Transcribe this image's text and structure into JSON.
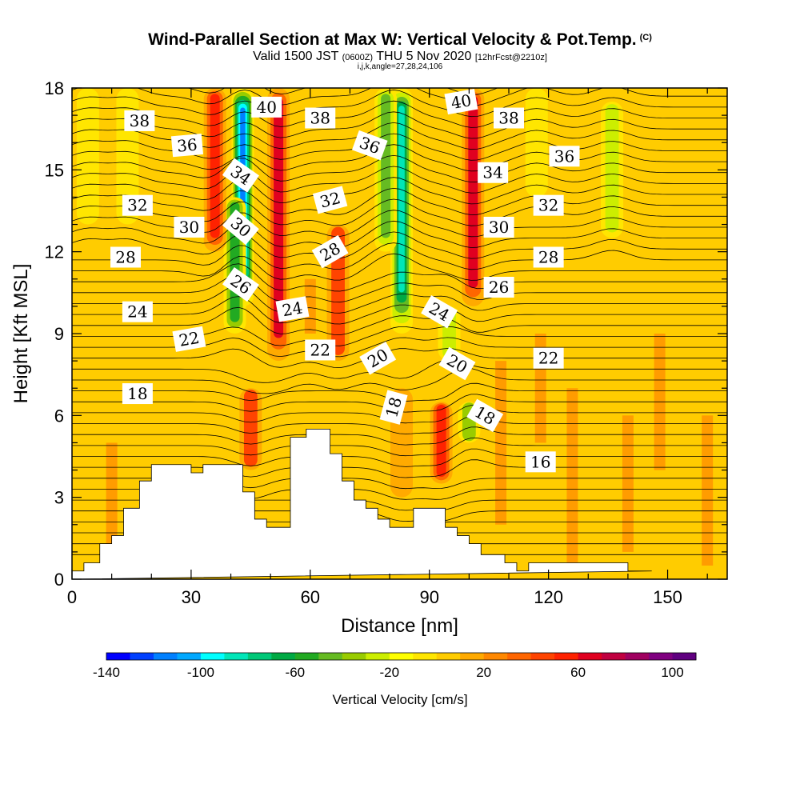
{
  "header": {
    "title": "Wind-Parallel Section at Max W: Vertical Velocity & Pot.Temp.",
    "copyright_tag": "(C)",
    "subtitle_pre": "Valid 1500 JST",
    "subtitle_utc": "(0600Z)",
    "subtitle_post": "THU 5 Nov 2020",
    "subtitle_fcst": "[12hrFcst@2210z]",
    "params": "i,j,k,angle=27,28,24,106"
  },
  "chart_data": {
    "type": "heatmap",
    "xlabel": "Distance [nm]",
    "ylabel": "Height [Kft MSL]",
    "xlim": [
      0,
      165
    ],
    "ylim": [
      0,
      18
    ],
    "x_ticks": [
      0,
      30,
      60,
      90,
      120,
      150
    ],
    "y_ticks": [
      0,
      3,
      6,
      9,
      12,
      15,
      18
    ],
    "colorbar": {
      "title": "Vertical Velocity [cm/s]",
      "range": [
        -140,
        110
      ],
      "step": 10,
      "tick_values": [
        -140,
        -100,
        -60,
        -20,
        20,
        60,
        100
      ],
      "tick_labels": [
        "-140",
        "-100",
        "-60",
        "-20",
        "20",
        "60",
        "100"
      ],
      "colors": [
        "#0000ff",
        "#0040ff",
        "#0080ff",
        "#00a8ff",
        "#00ffff",
        "#00e6b8",
        "#00c878",
        "#00aa44",
        "#22aa22",
        "#66bb22",
        "#99cc00",
        "#ccee00",
        "#ffff00",
        "#ffe600",
        "#ffcc00",
        "#ffaa00",
        "#ff8800",
        "#ff6600",
        "#ff4400",
        "#ff2200",
        "#e00020",
        "#c00040",
        "#a00060",
        "#800080",
        "#600080"
      ]
    },
    "velocity_features": [
      {
        "x": 43,
        "y0": 10,
        "y1": 18,
        "w": -120
      },
      {
        "x": 41,
        "y0": 9,
        "y1": 14,
        "w": -60
      },
      {
        "x": 36,
        "y0": 12,
        "y1": 18,
        "w": 50
      },
      {
        "x": 52,
        "y0": 8,
        "y1": 18,
        "w": 60
      },
      {
        "x": 83,
        "y0": 9,
        "y1": 18,
        "w": -90
      },
      {
        "x": 79,
        "y0": 12,
        "y1": 18,
        "w": -50
      },
      {
        "x": 67,
        "y0": 8,
        "y1": 13,
        "w": 40
      },
      {
        "x": 101,
        "y0": 10,
        "y1": 18,
        "w": 60
      },
      {
        "x": 93,
        "y0": 3.5,
        "y1": 6.5,
        "w": 50
      },
      {
        "x": 83,
        "y0": 3,
        "y1": 7,
        "w": 20
      },
      {
        "x": 45,
        "y0": 4,
        "y1": 7,
        "w": 40
      },
      {
        "x": 4,
        "y0": 13,
        "y1": 18,
        "w": -20
      },
      {
        "x": 14,
        "y0": 13,
        "y1": 18,
        "w": -15
      },
      {
        "x": 117,
        "y0": 14,
        "y1": 18,
        "w": -20
      },
      {
        "x": 136,
        "y0": 12.5,
        "y1": 17.5,
        "w": -30
      },
      {
        "x": 100,
        "y0": 5,
        "y1": 6.5,
        "w": -40
      },
      {
        "x": 95,
        "y0": 8,
        "y1": 10,
        "w": -30
      }
    ],
    "terrain": {
      "x": [
        0,
        3,
        3,
        7,
        7,
        10,
        10,
        13,
        13,
        17,
        17,
        20,
        20,
        30,
        30,
        33,
        33,
        43,
        43,
        46,
        46,
        49,
        49,
        55,
        55,
        59,
        59,
        65,
        65,
        68,
        68,
        71,
        71,
        74,
        74,
        77,
        77,
        80,
        80,
        86,
        86,
        94,
        94,
        97,
        97,
        100,
        100,
        103,
        103,
        109,
        109,
        112,
        112,
        115,
        115,
        140,
        140,
        146,
        146,
        165
      ],
      "y": [
        0.3,
        0.3,
        0.6,
        0.6,
        1.3,
        1.3,
        1.6,
        1.6,
        2.6,
        2.6,
        3.6,
        3.6,
        4.2,
        4.2,
        3.9,
        3.9,
        4.2,
        4.2,
        3.2,
        3.2,
        2.2,
        2.2,
        1.9,
        1.9,
        5.2,
        5.2,
        5.5,
        5.5,
        4.6,
        4.6,
        3.6,
        3.6,
        2.9,
        2.9,
        2.6,
        2.6,
        2.2,
        2.2,
        1.9,
        1.9,
        2.6,
        2.6,
        1.9,
        1.9,
        1.6,
        1.6,
        1.3,
        1.3,
        0.9,
        0.9,
        0.6,
        0.6,
        0.3,
        0.3,
        0.6,
        0.6,
        0.3,
        0.3,
        0.3
      ]
    },
    "theta_labels": [
      {
        "text": "38",
        "x": 17,
        "y": 16.8,
        "angle": 0
      },
      {
        "text": "36",
        "x": 29,
        "y": 15.9,
        "angle": -5
      },
      {
        "text": "34",
        "x": 42.5,
        "y": 14.8,
        "angle": 35
      },
      {
        "text": "40",
        "x": 49,
        "y": 17.3,
        "angle": 0
      },
      {
        "text": "38",
        "x": 62.5,
        "y": 16.9,
        "angle": 0
      },
      {
        "text": "36",
        "x": 75,
        "y": 15.9,
        "angle": 20
      },
      {
        "text": "40",
        "x": 98,
        "y": 17.5,
        "angle": -10
      },
      {
        "text": "38",
        "x": 110,
        "y": 16.9,
        "angle": 0
      },
      {
        "text": "36",
        "x": 124,
        "y": 15.5,
        "angle": 0
      },
      {
        "text": "34",
        "x": 106,
        "y": 14.9,
        "angle": 0
      },
      {
        "text": "32",
        "x": 16.5,
        "y": 13.7,
        "angle": 0
      },
      {
        "text": "32",
        "x": 65,
        "y": 13.9,
        "angle": -15
      },
      {
        "text": "32",
        "x": 120,
        "y": 13.7,
        "angle": 0
      },
      {
        "text": "30",
        "x": 29.5,
        "y": 12.9,
        "angle": 0
      },
      {
        "text": "30",
        "x": 42.5,
        "y": 12.9,
        "angle": 40
      },
      {
        "text": "30",
        "x": 107.5,
        "y": 12.9,
        "angle": 0
      },
      {
        "text": "28",
        "x": 13.5,
        "y": 11.8,
        "angle": 0
      },
      {
        "text": "28",
        "x": 65,
        "y": 12.0,
        "angle": -30
      },
      {
        "text": "28",
        "x": 120,
        "y": 11.8,
        "angle": 0
      },
      {
        "text": "26",
        "x": 42.5,
        "y": 10.8,
        "angle": 35
      },
      {
        "text": "26",
        "x": 107.5,
        "y": 10.7,
        "angle": 0
      },
      {
        "text": "24",
        "x": 16.5,
        "y": 9.8,
        "angle": 0
      },
      {
        "text": "24",
        "x": 55.5,
        "y": 9.9,
        "angle": -10
      },
      {
        "text": "24",
        "x": 92.5,
        "y": 9.8,
        "angle": 30
      },
      {
        "text": "22",
        "x": 29.5,
        "y": 8.8,
        "angle": -10
      },
      {
        "text": "22",
        "x": 62.5,
        "y": 8.4,
        "angle": 0
      },
      {
        "text": "22",
        "x": 120,
        "y": 8.1,
        "angle": 0
      },
      {
        "text": "20",
        "x": 77,
        "y": 8.1,
        "angle": -30
      },
      {
        "text": "20",
        "x": 97,
        "y": 7.9,
        "angle": 30
      },
      {
        "text": "18",
        "x": 16.5,
        "y": 6.8,
        "angle": 0
      },
      {
        "text": "18",
        "x": 81,
        "y": 6.3,
        "angle": -75
      },
      {
        "text": "18",
        "x": 104,
        "y": 6.0,
        "angle": 30
      },
      {
        "text": "16",
        "x": 118,
        "y": 4.3,
        "angle": 0
      }
    ]
  }
}
